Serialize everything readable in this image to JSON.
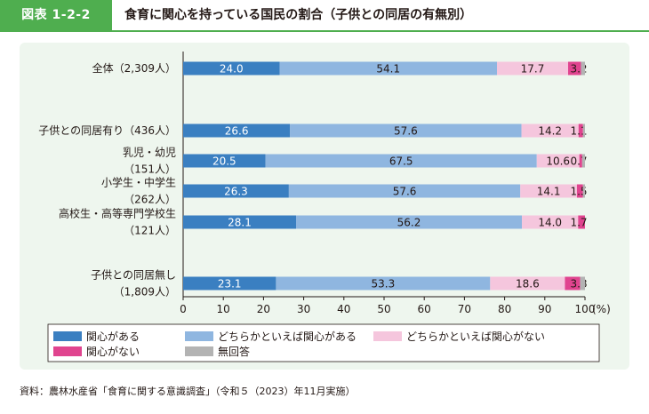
{
  "header": {
    "label": "図表 1-2-2",
    "title": "食育に関心を持っている国民の割合（子供との同居の有無別）"
  },
  "chart_data": {
    "type": "bar",
    "orientation": "horizontal",
    "stacked": true,
    "title": "食育に関心を持っている国民の割合（子供との同居の有無別）",
    "xlabel": "(%)",
    "xlim": [
      0,
      100
    ],
    "xticks": [
      "0",
      "10",
      "20",
      "30",
      "40",
      "50",
      "60",
      "70",
      "80",
      "90",
      "100"
    ],
    "categories": [
      {
        "lines": [
          "全体（2,309人）"
        ]
      },
      {
        "lines": [
          "子供との同居有り（436人）"
        ]
      },
      {
        "lines": [
          "乳児・幼児",
          "（151人）"
        ]
      },
      {
        "lines": [
          "小学生・中学生",
          "（262人）"
        ]
      },
      {
        "lines": [
          "高校生・高等専門学校生",
          "（121人）"
        ]
      },
      {
        "lines": [
          "子供との同居無し",
          "（1,809人）"
        ]
      }
    ],
    "series": [
      {
        "name": "関心がある",
        "color": "#3a7fc1",
        "label_color": "#ffffff",
        "values": [
          24.0,
          26.6,
          20.5,
          26.3,
          28.1,
          23.1
        ],
        "labels": [
          "24.0",
          "26.6",
          "20.5",
          "26.3",
          "28.1",
          "23.1"
        ]
      },
      {
        "name": "どちらかといえば関心がある",
        "color": "#8fb6e0",
        "label_color": "#231815",
        "values": [
          54.1,
          57.6,
          67.5,
          57.6,
          56.2,
          53.3
        ],
        "labels": [
          "54.1",
          "57.6",
          "67.5",
          "57.6",
          "56.2",
          "53.3"
        ]
      },
      {
        "name": "どちらかといえば関心がない",
        "color": "#f5c6dd",
        "label_color": "#231815",
        "values": [
          17.7,
          14.2,
          10.6,
          14.1,
          14.0,
          18.6
        ],
        "labels": [
          "17.7",
          "14.2",
          "10.6",
          "14.1",
          "14.0",
          "18.6"
        ]
      },
      {
        "name": "関心がない",
        "color": "#e0448f",
        "label_color": "#231815",
        "values": [
          3.2,
          1.1,
          0.7,
          1.5,
          1.7,
          3.8
        ],
        "labels": [
          "3.2",
          "1.1",
          "0.7",
          "1.5",
          "1.7",
          "3.8"
        ]
      },
      {
        "name": "無回答",
        "color": "#b3b3b3",
        "label_color": "#231815",
        "values": [
          1.0,
          0.5,
          0.7,
          0.5,
          0.0,
          1.2
        ],
        "labels": [
          "",
          "",
          "",
          "",
          "",
          ""
        ]
      }
    ],
    "legend": {
      "placement": "bottom"
    }
  },
  "source": "資料：農林水産省「食育に関する意識調査」（令和５（2023）年11月実施）"
}
